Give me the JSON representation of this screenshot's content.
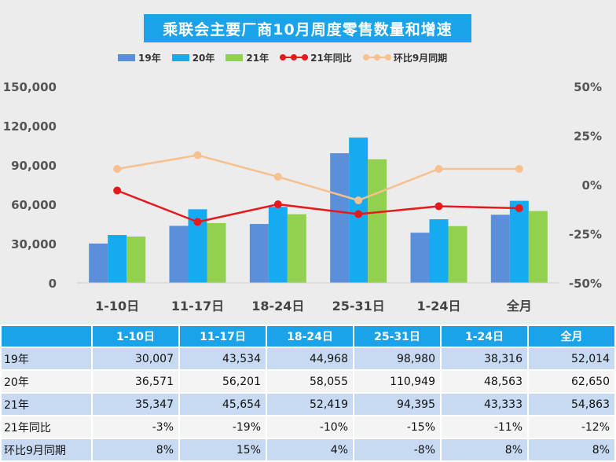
{
  "chart_data": {
    "type": "bar+line",
    "title": "乘联会主要厂商10月周度零售数量和增速",
    "categories": [
      "1-10日",
      "11-17日",
      "18-24日",
      "25-31日",
      "1-24日",
      "全月"
    ],
    "series": [
      {
        "name": "19年",
        "kind": "bar",
        "color": "#5b8fd9",
        "values": [
          30007,
          43534,
          44968,
          98980,
          38316,
          52014
        ]
      },
      {
        "name": "20年",
        "kind": "bar",
        "color": "#16aaf0",
        "values": [
          36571,
          56201,
          58055,
          110949,
          48563,
          62650
        ]
      },
      {
        "name": "21年",
        "kind": "bar",
        "color": "#92d050",
        "values": [
          35347,
          45654,
          52419,
          94395,
          43333,
          54863
        ]
      },
      {
        "name": "21年同比",
        "kind": "line",
        "axis": "right",
        "color": "#e41a1c",
        "values": [
          -3,
          -19,
          -10,
          -15,
          -11,
          -12
        ]
      },
      {
        "name": "环比9月同期",
        "kind": "line",
        "axis": "right",
        "color": "#f7c08f",
        "values": [
          8,
          15,
          4,
          -8,
          8,
          8
        ]
      }
    ],
    "left_axis": {
      "ylim": [
        0,
        150000
      ],
      "ticks": [
        "0",
        "30,000",
        "60,000",
        "90,000",
        "120,000",
        "150,000"
      ]
    },
    "right_axis": {
      "ylim": [
        -50,
        50
      ],
      "unit": "%",
      "ticks": [
        "-50%",
        "-25%",
        "0%",
        "25%",
        "50%"
      ]
    }
  },
  "table": {
    "headers": [
      "",
      "1-10日",
      "11-17日",
      "18-24日",
      "25-31日",
      "1-24日",
      "全月"
    ],
    "rows": [
      [
        "19年",
        "30,007",
        "43,534",
        "44,968",
        "98,980",
        "38,316",
        "52,014"
      ],
      [
        "20年",
        "36,571",
        "56,201",
        "58,055",
        "110,949",
        "48,563",
        "62,650"
      ],
      [
        "21年",
        "35,347",
        "45,654",
        "52,419",
        "94,395",
        "43,333",
        "54,863"
      ],
      [
        "21年同比",
        "-3%",
        "-19%",
        "-10%",
        "-15%",
        "-11%",
        "-12%"
      ],
      [
        "环比9月同期",
        "8%",
        "15%",
        "4%",
        "-8%",
        "8%",
        "8%"
      ]
    ]
  }
}
